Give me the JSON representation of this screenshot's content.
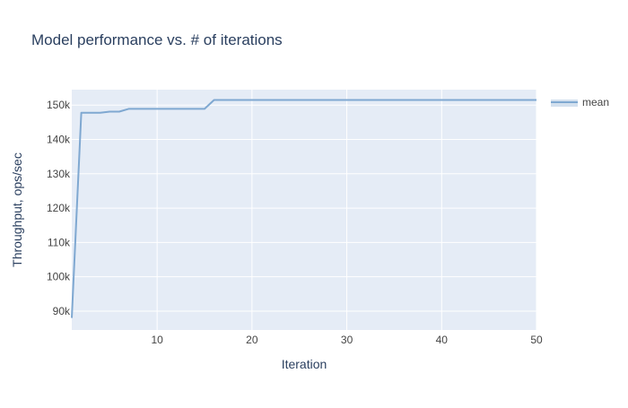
{
  "chart_data": {
    "type": "line",
    "title": "Model performance vs. # of iterations",
    "xlabel": "Iteration",
    "ylabel": "Throughput, ops/sec",
    "xlim": [
      1,
      50
    ],
    "ylim": [
      84500,
      154500
    ],
    "x_ticks": [
      10,
      20,
      30,
      40,
      50
    ],
    "x_tick_labels": [
      "10",
      "20",
      "30",
      "40",
      "50"
    ],
    "y_ticks": [
      90000,
      100000,
      110000,
      120000,
      130000,
      140000,
      150000
    ],
    "y_tick_labels": [
      "90k",
      "100k",
      "110k",
      "120k",
      "130k",
      "140k",
      "150k"
    ],
    "grid": true,
    "legend_position": "top-right",
    "series": [
      {
        "name": "mean",
        "color": "#7fa8d1",
        "x": [
          1,
          2,
          3,
          4,
          5,
          6,
          7,
          8,
          9,
          10,
          11,
          12,
          13,
          14,
          15,
          16,
          17,
          18,
          19,
          20,
          21,
          22,
          23,
          24,
          25,
          26,
          27,
          28,
          29,
          30,
          31,
          32,
          33,
          34,
          35,
          36,
          37,
          38,
          39,
          40,
          41,
          42,
          43,
          44,
          45,
          46,
          47,
          48,
          49,
          50
        ],
        "y": [
          88000,
          147800,
          147800,
          147800,
          148100,
          148100,
          148900,
          148900,
          148900,
          148900,
          148900,
          148900,
          148900,
          148900,
          148900,
          151500,
          151500,
          151500,
          151500,
          151500,
          151500,
          151500,
          151500,
          151500,
          151500,
          151500,
          151500,
          151500,
          151500,
          151500,
          151500,
          151500,
          151500,
          151500,
          151500,
          151500,
          151500,
          151500,
          151500,
          151500,
          151500,
          151500,
          151500,
          151500,
          151500,
          151500,
          151500,
          151500,
          151500,
          151500
        ]
      }
    ]
  },
  "colors": {
    "plot_background": "#e5ecf6",
    "grid": "#ffffff",
    "text": "#2a3f5f",
    "tick_text": "#444444"
  }
}
